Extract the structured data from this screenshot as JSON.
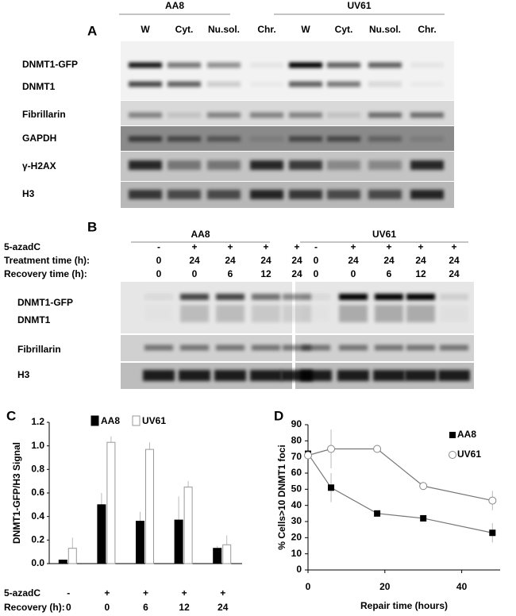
{
  "panel_a": {
    "label": "A",
    "groups": [
      {
        "name": "AA8",
        "lanes": [
          "W",
          "Cyt.",
          "Nu.sol.",
          "Chr."
        ]
      },
      {
        "name": "UV61",
        "lanes": [
          "W",
          "Cyt.",
          "Nu.sol.",
          "Chr."
        ]
      }
    ],
    "rows": [
      "DNMT1-GFP",
      "DNMT1",
      "Fibrillarin",
      "GAPDH",
      "γ-H2AX",
      "H3"
    ]
  },
  "panel_b": {
    "label": "B",
    "groups": [
      {
        "name": "AA8",
        "conditions": [
          [
            "-",
            "+",
            "+",
            "+",
            "+"
          ],
          [
            "0",
            "24",
            "24",
            "24",
            "24"
          ],
          [
            "0",
            "0",
            "6",
            "12",
            "24"
          ]
        ]
      },
      {
        "name": "UV61",
        "conditions": [
          [
            "-",
            "+",
            "+",
            "+",
            "+"
          ],
          [
            "0",
            "24",
            "24",
            "24",
            "24"
          ],
          [
            "0",
            "0",
            "6",
            "12",
            "24"
          ]
        ]
      }
    ],
    "condition_labels": [
      "5-azadC",
      "Treatment time (h):",
      "Recovery time (h):"
    ],
    "rows": [
      "DNMT1-GFP",
      "DNMT1",
      "Fibrillarin",
      "H3"
    ]
  },
  "chart_data": [
    {
      "type": "bar",
      "panel": "C",
      "ylabel": "DNMT1-GFP/H3 Signal",
      "categories": [
        "0",
        "0",
        "6",
        "12",
        "24"
      ],
      "category_label": "Recovery  (h):",
      "treatment_label": "5-azadC",
      "treatment": [
        "-",
        "+",
        "+",
        "+",
        "+"
      ],
      "series": [
        {
          "name": "AA8",
          "color": "#000000",
          "values": [
            0.03,
            0.5,
            0.36,
            0.37,
            0.13
          ],
          "errors": [
            0,
            0.1,
            0.08,
            0.2,
            0.02
          ]
        },
        {
          "name": "UV61",
          "color": "#ffffff",
          "values": [
            0.13,
            1.03,
            0.97,
            0.65,
            0.16
          ],
          "errors": [
            0.09,
            0.05,
            0.06,
            0.05,
            0.08
          ]
        }
      ],
      "ylim": [
        0,
        1.2
      ],
      "yticks": [
        {
          "value": 0,
          "label": "0.0"
        },
        {
          "value": 0.2,
          "label": "0.2"
        },
        {
          "value": 0.4,
          "label": "0.4"
        },
        {
          "value": 0.6,
          "label": "0.6"
        },
        {
          "value": 0.8,
          "label": "0.8"
        },
        {
          "value": 1,
          "label": "1.0"
        },
        {
          "value": 1.2,
          "label": "1.2"
        }
      ]
    },
    {
      "type": "line",
      "panel": "D",
      "ylabel": "% Cells>10 DNMT1 foci",
      "xlabel": "Repair time (hours)",
      "series": [
        {
          "name": "AA8",
          "color": "#000000",
          "marker": "square",
          "x": [
            0,
            6,
            18,
            30,
            48
          ],
          "values": [
            72,
            51,
            35,
            32,
            23
          ],
          "errors": [
            0,
            9,
            0,
            2,
            6
          ]
        },
        {
          "name": "UV61",
          "color": "#888888",
          "marker": "circle",
          "x": [
            0,
            6,
            18,
            30,
            48
          ],
          "values": [
            71,
            75,
            75,
            52,
            43
          ],
          "errors": [
            0,
            12,
            0,
            2,
            6
          ]
        }
      ],
      "xlim": [
        0,
        50
      ],
      "xticks": [
        0,
        20,
        40
      ],
      "ylim": [
        0,
        90
      ],
      "yticks": [
        0,
        10,
        20,
        30,
        40,
        50,
        60,
        70,
        80,
        90
      ]
    }
  ]
}
